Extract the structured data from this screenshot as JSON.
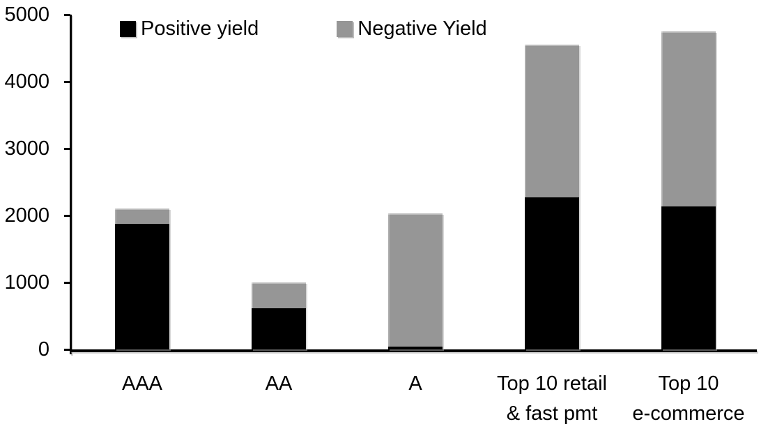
{
  "chart_data": {
    "type": "bar",
    "stacked": true,
    "title": "",
    "xlabel": "",
    "ylabel": "",
    "grid": false,
    "legend_position": "top",
    "ylim": [
      0,
      5000
    ],
    "yticks": [
      0,
      1000,
      2000,
      3000,
      4000,
      5000
    ],
    "categories": [
      "AAA",
      "AA",
      "A",
      "Top 10 retail & fast pmt",
      "Top 10 e-commerce"
    ],
    "category_label_lines": [
      [
        "AAA"
      ],
      [
        "AA"
      ],
      [
        "A"
      ],
      [
        "Top 10 retail",
        "& fast pmt"
      ],
      [
        "Top 10",
        "e-commerce"
      ]
    ],
    "series": [
      {
        "name": "Positive yield",
        "color": "#000000",
        "values": [
          1880,
          610,
          40,
          2270,
          2140
        ]
      },
      {
        "name": "Negative Yield",
        "color": "#969696",
        "values": [
          230,
          390,
          1990,
          2280,
          2610
        ]
      }
    ]
  },
  "colors": {
    "axis": "#000000",
    "background": "#ffffff",
    "positive": "#000000",
    "negative": "#969696"
  }
}
